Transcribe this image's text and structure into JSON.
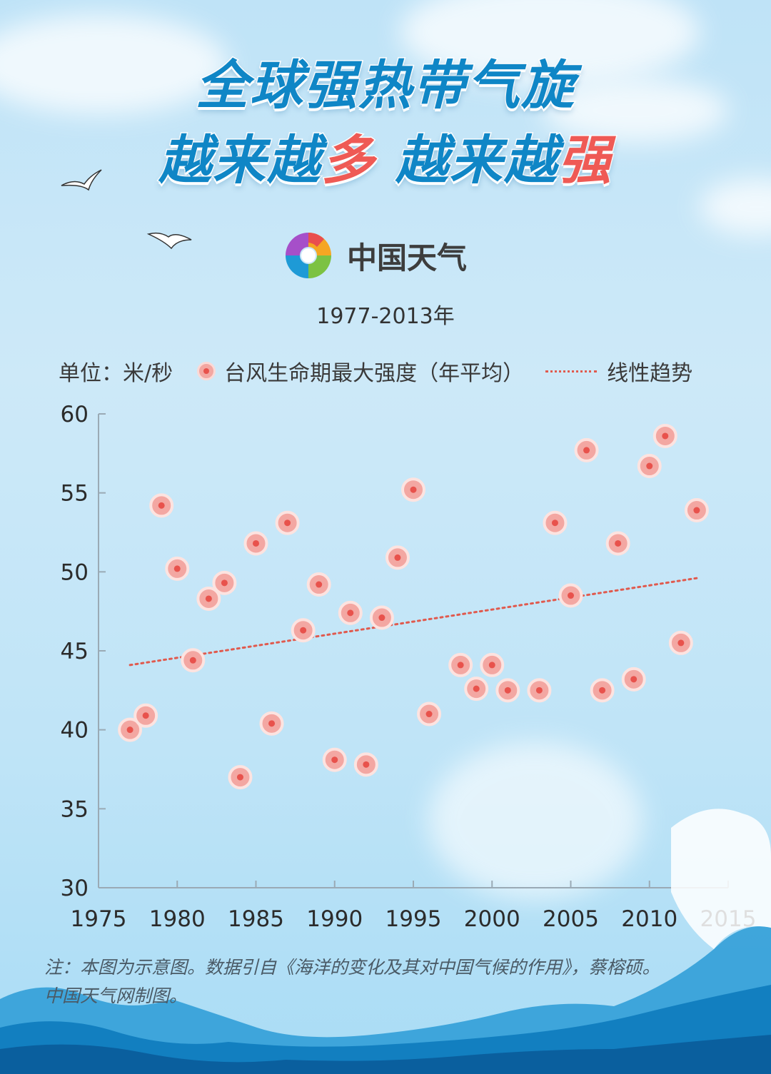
{
  "header": {
    "title_line1": "全球强热带气旋",
    "title_line2_a": "越来越",
    "title_line2_b": "多",
    "title_line2_c": " 越来越",
    "title_line2_d": "强",
    "logo_text": "中国天气",
    "period": "1977-2013年"
  },
  "legend": {
    "unit": "单位：米/秒",
    "series_label": "台风生命期最大强度（年平均）",
    "trend_label": "线性趋势"
  },
  "note": {
    "line1": "注：本图为示意图。数据引自《海洋的变化及其对中国气候的作用》，蔡榕硕。",
    "line2": "中国天气网制图。"
  },
  "chart_data": {
    "type": "scatter",
    "title": "",
    "xlabel": "",
    "ylabel": "",
    "xlim": [
      1975,
      2015
    ],
    "ylim": [
      30,
      60
    ],
    "x_ticks": [
      1975,
      1980,
      1985,
      1990,
      1995,
      2000,
      2005,
      2010,
      2015
    ],
    "y_ticks": [
      30,
      35,
      40,
      45,
      50,
      55,
      60
    ],
    "grid": false,
    "series": [
      {
        "name": "台风生命期最大强度（年平均）",
        "points": [
          {
            "x": 1977,
            "y": 40.0
          },
          {
            "x": 1978,
            "y": 40.9
          },
          {
            "x": 1979,
            "y": 54.2
          },
          {
            "x": 1980,
            "y": 50.2
          },
          {
            "x": 1981,
            "y": 44.4
          },
          {
            "x": 1982,
            "y": 48.3
          },
          {
            "x": 1983,
            "y": 49.3
          },
          {
            "x": 1984,
            "y": 37.0
          },
          {
            "x": 1985,
            "y": 51.8
          },
          {
            "x": 1986,
            "y": 40.4
          },
          {
            "x": 1987,
            "y": 53.1
          },
          {
            "x": 1988,
            "y": 46.3
          },
          {
            "x": 1989,
            "y": 49.2
          },
          {
            "x": 1990,
            "y": 38.1
          },
          {
            "x": 1991,
            "y": 47.4
          },
          {
            "x": 1992,
            "y": 37.8
          },
          {
            "x": 1993,
            "y": 47.1
          },
          {
            "x": 1994,
            "y": 50.9
          },
          {
            "x": 1995,
            "y": 55.2
          },
          {
            "x": 1996,
            "y": 41.0
          },
          {
            "x": 1998,
            "y": 44.1
          },
          {
            "x": 1999,
            "y": 42.6
          },
          {
            "x": 2000,
            "y": 44.1
          },
          {
            "x": 2001,
            "y": 42.5
          },
          {
            "x": 2003,
            "y": 42.5
          },
          {
            "x": 2004,
            "y": 53.1
          },
          {
            "x": 2005,
            "y": 48.5
          },
          {
            "x": 2006,
            "y": 57.7
          },
          {
            "x": 2007,
            "y": 42.5
          },
          {
            "x": 2008,
            "y": 51.8
          },
          {
            "x": 2009,
            "y": 43.2
          },
          {
            "x": 2010,
            "y": 56.7
          },
          {
            "x": 2011,
            "y": 58.6
          },
          {
            "x": 2012,
            "y": 45.5
          },
          {
            "x": 2013,
            "y": 53.9
          }
        ]
      }
    ],
    "trend": {
      "name": "线性趋势",
      "x": [
        1977,
        2013
      ],
      "y": [
        44.1,
        49.6
      ]
    },
    "colors": {
      "marker": "#f3a7a2",
      "marker_center": "#e8524c",
      "trend": "#e05a4e",
      "axis": "#9aaab5",
      "tick_text": "#2b2b2b"
    }
  }
}
